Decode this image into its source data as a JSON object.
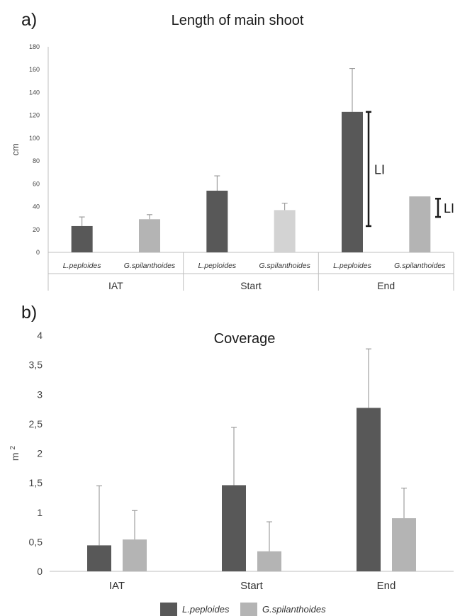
{
  "chart_data": [
    {
      "panel": "a)",
      "type": "bar",
      "title": "Length of main shoot",
      "ylabel": "cm",
      "ylim": [
        0,
        180
      ],
      "yticks": [
        "0",
        "20",
        "40",
        "60",
        "80",
        "100",
        "120",
        "140",
        "160",
        "180"
      ],
      "groups": [
        "IAT",
        "Start",
        "End"
      ],
      "subcategories": [
        "L.peploides",
        "G.spilanthoides",
        "L.peploides",
        "G.spilanthoides",
        "L.peploides",
        "G.spilanthoides"
      ],
      "bars": [
        {
          "group": "IAT",
          "species": "L.peploides",
          "value": 23,
          "error": 31,
          "color": "#585858"
        },
        {
          "group": "IAT",
          "species": "G.spilanthoides",
          "value": 29,
          "error": 33,
          "color": "#b4b4b4"
        },
        {
          "group": "Start",
          "species": "L.peploides",
          "value": 54,
          "error": 67,
          "color": "#585858"
        },
        {
          "group": "Start",
          "species": "G.spilanthoides",
          "value": 37,
          "error": 43,
          "color": "#d3d3d3"
        },
        {
          "group": "End",
          "species": "L.peploides",
          "value": 123,
          "error": 161,
          "color": "#585858"
        },
        {
          "group": "End",
          "species": "G.spilanthoides",
          "value": 49,
          "error": null,
          "color": "#b4b4b4"
        }
      ],
      "annotations": [
        {
          "label": "LI",
          "from": 23,
          "to": 123,
          "species": "L.peploides"
        },
        {
          "label": "LI",
          "from": 31,
          "to": 47,
          "species": "G.spilanthoides"
        }
      ],
      "grid": false,
      "legend": "none"
    },
    {
      "panel": "b)",
      "type": "bar",
      "title": "Coverage",
      "ylabel": "m",
      "ylabel_superscript": "2",
      "ylim": [
        0,
        4
      ],
      "yticks": [
        "0",
        "0,5",
        "1",
        "1,5",
        "2",
        "2,5",
        "3",
        "3,5",
        "4"
      ],
      "categories": [
        "IAT",
        "Start",
        "End"
      ],
      "series": [
        {
          "name": "L.peploides",
          "color": "#585858",
          "values": [
            0.44,
            1.46,
            2.77
          ],
          "errors": [
            1.45,
            2.44,
            3.77
          ]
        },
        {
          "name": "G.spilanthoides",
          "color": "#b4b4b4",
          "values": [
            0.54,
            0.34,
            0.9
          ],
          "errors": [
            1.03,
            0.84,
            1.41
          ]
        }
      ],
      "grid": false,
      "legend": "bottom"
    }
  ]
}
